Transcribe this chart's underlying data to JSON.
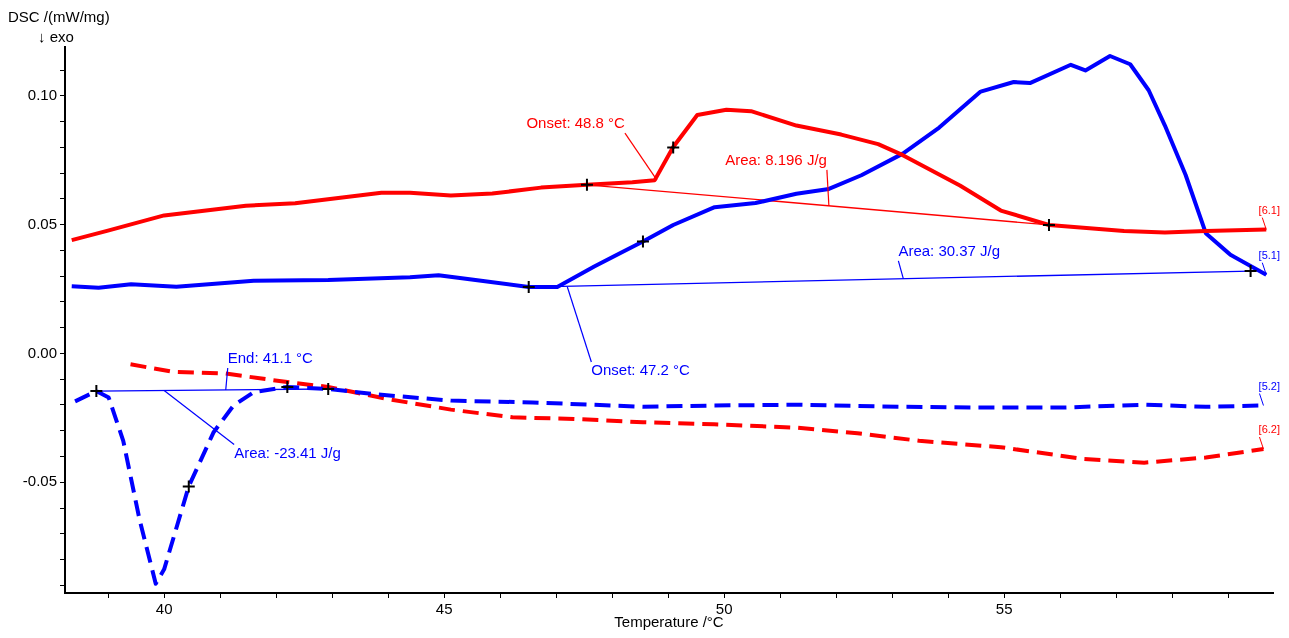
{
  "chart_data": {
    "type": "line",
    "xlabel": "Temperature /°C",
    "ylabel": "DSC /(mW/mg)",
    "xlim": [
      38.23,
      59.8
    ],
    "ylim": [
      -0.093,
      0.119
    ],
    "xticks": [
      {
        "value": 39,
        "label": null
      },
      40,
      {
        "value": 41,
        "label": null
      },
      {
        "value": 42,
        "label": null
      },
      {
        "value": 43,
        "label": null
      },
      {
        "value": 44,
        "label": null
      },
      45,
      {
        "value": 46,
        "label": null
      },
      {
        "value": 47,
        "label": null
      },
      {
        "value": 48,
        "label": null
      },
      {
        "value": 49,
        "label": null
      },
      50,
      {
        "value": 51,
        "label": null
      },
      {
        "value": 52,
        "label": null
      },
      {
        "value": 53,
        "label": null
      },
      {
        "value": 54,
        "label": null
      },
      55,
      {
        "value": 56,
        "label": null
      },
      {
        "value": 57,
        "label": null
      },
      {
        "value": 58,
        "label": null
      },
      {
        "value": 59,
        "label": null
      }
    ],
    "yticks": [
      {
        "value": -0.09,
        "label": null
      },
      {
        "value": -0.08,
        "label": null
      },
      {
        "value": -0.07,
        "label": null
      },
      {
        "value": -0.06,
        "label": null
      },
      {
        "value": -0.05,
        "label": "-0.05"
      },
      {
        "value": -0.04,
        "label": null
      },
      {
        "value": -0.03,
        "label": null
      },
      {
        "value": -0.02,
        "label": null
      },
      {
        "value": -0.01,
        "label": null
      },
      {
        "value": 0,
        "label": "0.00"
      },
      {
        "value": 0.01,
        "label": null
      },
      {
        "value": 0.02,
        "label": null
      },
      {
        "value": 0.03,
        "label": null
      },
      {
        "value": 0.04,
        "label": null
      },
      {
        "value": 0.05,
        "label": "0.05"
      },
      {
        "value": 0.06,
        "label": null
      },
      {
        "value": 0.07,
        "label": null
      },
      {
        "value": 0.08,
        "label": null
      },
      {
        "value": 0.09,
        "label": null
      },
      {
        "value": 0.1,
        "label": "0.10"
      },
      {
        "value": 0.11,
        "label": null
      }
    ],
    "grid": false,
    "legend": false,
    "annotations": [
      "↓ exo",
      {
        "text": "Onset: 48.8 °C",
        "x": 48.8,
        "y": 0.0673
      },
      {
        "text": "Area: 8.196 J/g",
        "x": 51.87,
        "y": 0.0573
      },
      {
        "text": "Area: 30.37 J/g",
        "x": 53.2,
        "y": 0.029
      },
      {
        "text": "Onset: 47.2 °C",
        "x": 47.2,
        "y": 0.0258
      },
      {
        "text": "End: 41.1 °C",
        "x": 41.1,
        "y": -0.0142
      },
      {
        "text": "Area: -23.41 J/g",
        "x": 40.0,
        "y": -0.0144
      }
    ],
    "series": [
      {
        "name": "[6.1]",
        "color": "#ff0000",
        "line_style": "solid",
        "x": [
          38.35,
          38.98,
          40.0,
          41.46,
          42.34,
          43.88,
          44.39,
          45.12,
          45.86,
          46.73,
          47.55,
          48.36,
          48.76,
          49.09,
          49.52,
          50.04,
          50.48,
          51.29,
          52.09,
          52.75,
          53.19,
          54.21,
          54.94,
          55.8,
          57.14,
          57.87,
          58.6,
          59.68
        ],
        "values": [
          0.044,
          0.0476,
          0.0536,
          0.0574,
          0.0583,
          0.0624,
          0.0624,
          0.0613,
          0.0621,
          0.0644,
          0.0655,
          0.0665,
          0.0673,
          0.0802,
          0.0926,
          0.0946,
          0.0941,
          0.0885,
          0.085,
          0.0813,
          0.077,
          0.0652,
          0.0555,
          0.0499,
          0.0476,
          0.047,
          0.0476,
          0.0481
        ]
      },
      {
        "name": "[5.1]",
        "color": "#0000ff",
        "line_style": "solid",
        "x": [
          38.35,
          38.83,
          39.41,
          40.22,
          41.6,
          42.93,
          44.39,
          44.9,
          45.49,
          46.51,
          47.02,
          47.68,
          48.55,
          49.09,
          49.83,
          50.56,
          51.29,
          51.87,
          52.45,
          53.19,
          53.84,
          54.58,
          55.17,
          55.46,
          56.19,
          56.45,
          56.89,
          57.25,
          57.58,
          57.87,
          58.24,
          58.6,
          59.04,
          59.68
        ],
        "values": [
          0.0261,
          0.0255,
          0.0269,
          0.0259,
          0.0282,
          0.0285,
          0.0296,
          0.0304,
          0.0287,
          0.0258,
          0.0258,
          0.0338,
          0.0435,
          0.0499,
          0.0568,
          0.0584,
          0.062,
          0.0639,
          0.0692,
          0.0776,
          0.0877,
          0.1017,
          0.1054,
          0.105,
          0.1121,
          0.1099,
          0.1155,
          0.1123,
          0.1022,
          0.0885,
          0.0693,
          0.0467,
          0.0383,
          0.0306
        ]
      },
      {
        "name": "[5.2]",
        "color": "#0000ff",
        "line_style": "dashed",
        "x": [
          38.41,
          38.79,
          39.01,
          39.27,
          39.56,
          39.85,
          40.0,
          40.44,
          40.88,
          41.24,
          41.6,
          42.2,
          42.93,
          43.8,
          45.12,
          46.58,
          48.55,
          49.82,
          51.29,
          53.19,
          54.43,
          56.04,
          57.5,
          58.6,
          59.63
        ],
        "values": [
          -0.0186,
          -0.0146,
          -0.0171,
          -0.0339,
          -0.0644,
          -0.0894,
          -0.0838,
          -0.0516,
          -0.0307,
          -0.0202,
          -0.015,
          -0.013,
          -0.0138,
          -0.0159,
          -0.0183,
          -0.019,
          -0.0207,
          -0.0202,
          -0.0199,
          -0.0207,
          -0.021,
          -0.021,
          -0.0199,
          -0.0207,
          -0.0202
        ]
      },
      {
        "name": "[6.2]",
        "color": "#ff0000",
        "line_style": "dashed",
        "x": [
          39.4,
          40.15,
          41.1,
          42.2,
          42.93,
          44.02,
          45.12,
          46.22,
          47.32,
          48.55,
          49.82,
          51.29,
          52.38,
          53.48,
          54.94,
          56.4,
          57.5,
          58.6,
          59.63
        ],
        "values": [
          -0.0042,
          -0.0071,
          -0.0078,
          -0.0111,
          -0.013,
          -0.0178,
          -0.0218,
          -0.0248,
          -0.0254,
          -0.0267,
          -0.0275,
          -0.0288,
          -0.031,
          -0.0339,
          -0.0364,
          -0.0409,
          -0.0424,
          -0.0404,
          -0.0371
        ]
      },
      {
        "color": "#ff0000",
        "line_style": "solid",
        "x": [
          47.55,
          55.8
        ],
        "values": [
          0.0655,
          0.0499
        ]
      },
      {
        "color": "#0000ff",
        "line_style": "solid",
        "x": [
          46.51,
          59.4
        ],
        "values": [
          0.0258,
          0.032
        ]
      },
      {
        "color": "#0000ff",
        "line_style": "solid",
        "x": [
          38.79,
          42.93
        ],
        "values": [
          -0.0146,
          -0.0138
        ]
      },
      {
        "type": "scatter",
        "color": "#000000",
        "marker": "cross",
        "x": [
          47.55,
          49.09,
          55.8,
          46.51,
          48.55,
          59.4,
          38.79,
          40.44,
          42.2,
          42.93
        ],
        "values": [
          0.0655,
          0.08,
          0.0499,
          0.0258,
          0.0435,
          0.032,
          -0.0146,
          -0.0516,
          -0.013,
          -0.0138
        ]
      }
    ]
  }
}
